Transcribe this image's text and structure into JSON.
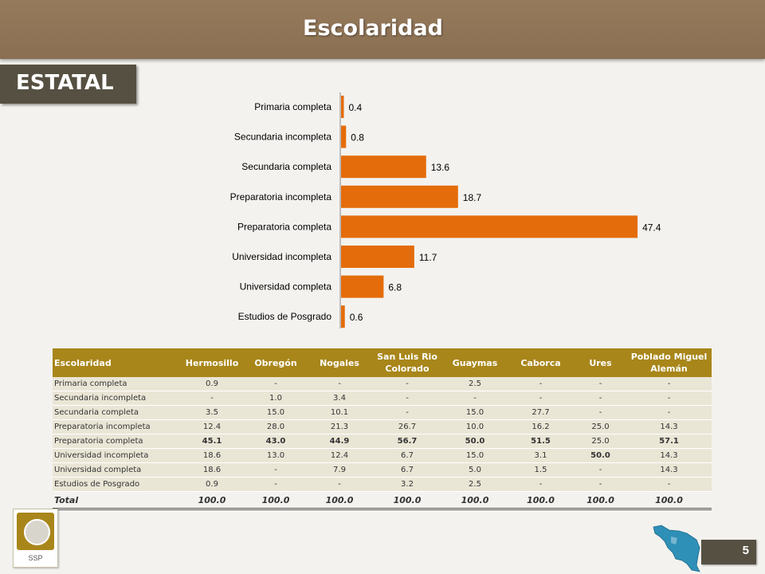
{
  "header": {
    "title": "Escolaridad"
  },
  "state": {
    "label": "ESTATAL"
  },
  "chart_data": {
    "type": "bar",
    "orientation": "horizontal",
    "categories": [
      "Primaria completa",
      "Secundaria incompleta",
      "Secundaria completa",
      "Preparatoria incompleta",
      "Preparatoria completa",
      "Universidad incompleta",
      "Universidad completa",
      "Estudios de Posgrado"
    ],
    "values": [
      0.4,
      0.8,
      13.6,
      18.7,
      47.4,
      11.7,
      6.8,
      0.6
    ],
    "value_labels": [
      "0.4",
      "0.8",
      "13.6",
      "18.7",
      "47.4",
      "11.7",
      "6.8",
      "0.6"
    ],
    "color": "#e46c0a",
    "xlim": [
      0,
      50
    ],
    "grid": false,
    "legend": "none"
  },
  "table": {
    "headers": [
      "Escolaridad",
      "Hermosillo",
      "Obregón",
      "Nogales",
      "San Luis Rio Colorado",
      "Guaymas",
      "Caborca",
      "Ures",
      "Poblado Miguel Alemán"
    ],
    "rows": [
      [
        "Primaria completa",
        "0.9",
        "-",
        "-",
        "-",
        "2.5",
        "-",
        "-",
        "-"
      ],
      [
        "Secundaria incompleta",
        "-",
        "1.0",
        "3.4",
        "-",
        "-",
        "-",
        "-",
        "-"
      ],
      [
        "Secundaria completa",
        "3.5",
        "15.0",
        "10.1",
        "-",
        "15.0",
        "27.7",
        "-",
        "-"
      ],
      [
        "Preparatoria incompleta",
        "12.4",
        "28.0",
        "21.3",
        "26.7",
        "10.0",
        "16.2",
        "25.0",
        "14.3"
      ],
      [
        "Preparatoria completa",
        "45.1",
        "43.0",
        "44.9",
        "56.7",
        "50.0",
        "51.5",
        "25.0",
        "57.1"
      ],
      [
        "Universidad incompleta",
        "18.6",
        "13.0",
        "12.4",
        "6.7",
        "15.0",
        "3.1",
        "50.0",
        "14.3"
      ],
      [
        "Universidad completa",
        "18.6",
        "-",
        "7.9",
        "6.7",
        "5.0",
        "1.5",
        "-",
        "14.3"
      ],
      [
        "Estudios de Posgrado",
        "0.9",
        "-",
        "-",
        "3.2",
        "2.5",
        "-",
        "-",
        "-"
      ]
    ],
    "bold_cells": [
      [
        4,
        1
      ],
      [
        4,
        2
      ],
      [
        4,
        3
      ],
      [
        4,
        4
      ],
      [
        4,
        5
      ],
      [
        4,
        6
      ],
      [
        4,
        8
      ],
      [
        5,
        7
      ]
    ],
    "total_row": [
      "Total",
      "100.0",
      "100.0",
      "100.0",
      "100.0",
      "100.0",
      "100.0",
      "100.0",
      "100.0"
    ]
  },
  "logo": {
    "text": "SSP"
  },
  "page": {
    "number": "5"
  }
}
